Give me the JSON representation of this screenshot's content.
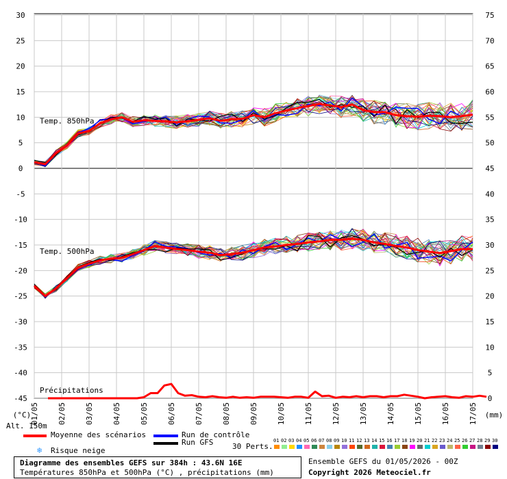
{
  "chart_data": {
    "type": "line",
    "title": "Diagramme des ensembles GEFS sur 384h : 43.6N 16E",
    "subtitle": "Températures 850hPa et 500hPa (°C) , précipitations (mm)",
    "x_tick_labels": [
      "01/05",
      "02/05",
      "03/05",
      "04/05",
      "05/05",
      "06/05",
      "07/05",
      "08/05",
      "09/05",
      "10/05",
      "11/05",
      "12/05",
      "13/05",
      "14/05",
      "15/05",
      "16/05",
      "17/05"
    ],
    "y_left_ticks": [
      30,
      25,
      20,
      15,
      10,
      5,
      0,
      -5,
      -10,
      -15,
      -20,
      -25,
      -30,
      -35,
      -40,
      -45
    ],
    "y_left_unit": "(°C)",
    "y_right_ticks": [
      75,
      70,
      65,
      60,
      55,
      50,
      45,
      40,
      35,
      30,
      25,
      20,
      15,
      10,
      5,
      0
    ],
    "y_right_unit": "(mm)",
    "ylim_left": [
      -45,
      30
    ],
    "panel_labels": {
      "t850": "Temp. 850hPa",
      "t500": "Temp. 500hPa",
      "precip": "Précipitations"
    },
    "series": [
      {
        "name": "Moyenne des scénarios",
        "color": "#ff0000",
        "t850": [
          1.2,
          0.8,
          3.0,
          4.5,
          6.8,
          7.3,
          8.8,
          9.6,
          10.0,
          9.1,
          9.4,
          9.3,
          9.2,
          9.0,
          9.2,
          9.5,
          9.8,
          9.3,
          9.6,
          9.7,
          10.4,
          10.0,
          10.8,
          11.3,
          11.8,
          12.2,
          12.6,
          12.3,
          12.0,
          12.5,
          11.4,
          11.0,
          11.0,
          10.4,
          10.2,
          10.1,
          10.3,
          10.2,
          10.0,
          10.2,
          10.5
        ],
        "t500": [
          -23.0,
          -25.0,
          -23.5,
          -21.5,
          -19.4,
          -18.7,
          -18.0,
          -17.7,
          -17.5,
          -16.8,
          -16.0,
          -15.2,
          -15.5,
          -15.8,
          -16.0,
          -16.3,
          -16.5,
          -17.0,
          -16.8,
          -16.5,
          -16.0,
          -15.5,
          -15.3,
          -15.0,
          -14.8,
          -14.5,
          -14.3,
          -14.0,
          -14.0,
          -13.8,
          -14.0,
          -14.5,
          -14.8,
          -15.2,
          -15.5,
          -16.0,
          -16.3,
          -16.6,
          -16.2,
          -15.8,
          -15.8
        ],
        "precip": [
          null,
          null,
          0,
          0,
          0,
          0,
          0,
          0,
          0,
          0,
          0,
          0,
          0,
          0,
          0,
          0,
          0.2,
          1.0,
          1.0,
          2.5,
          2.8,
          1.0,
          0.5,
          0.6,
          0.3,
          0.2,
          0.4,
          0.2,
          0.1,
          0.3,
          0.1,
          0.2,
          0.1,
          0.3,
          0.3,
          0.3,
          0.2,
          0.1,
          0.3,
          0.3,
          0.1,
          1.3,
          0.4,
          0.5,
          0.1,
          0.3,
          0.2,
          0.4,
          0.2,
          0.4,
          0.4,
          0.2,
          0.4,
          0.4,
          0.7,
          0.5,
          0.3,
          0.0,
          0.2,
          0.3,
          0.4,
          0.2,
          0.1,
          0.4,
          0.3,
          0.5,
          0.3
        ]
      },
      {
        "name": "Run de contrôle",
        "color": "#0000ff"
      },
      {
        "name": "Run GFS",
        "color": "#000000"
      }
    ]
  },
  "legend": {
    "mean_label": "Moyenne des scénarios",
    "control_label": "Run de contrôle",
    "gfs_label": "Run GFS",
    "snow_label": "Risque neige",
    "perts_label": "30 Perts.",
    "alt_label": "Alt. 150m",
    "snow_icon": "snowflake-icon",
    "pert_numbers": [
      "01",
      "02",
      "03",
      "04",
      "05",
      "06",
      "07",
      "08",
      "09",
      "10",
      "11",
      "12",
      "13",
      "14",
      "15",
      "16",
      "17",
      "18",
      "19",
      "20",
      "21",
      "22",
      "23",
      "24",
      "25",
      "26",
      "27",
      "28",
      "29",
      "30"
    ],
    "pert_colors": [
      "#ff8c00",
      "#90ee90",
      "#ffd700",
      "#1e90ff",
      "#ff69b4",
      "#2e8b57",
      "#cd853f",
      "#87ceeb",
      "#b8860b",
      "#9370db",
      "#ff4500",
      "#556b2f",
      "#d2691e",
      "#20b2aa",
      "#dc143c",
      "#4682b4",
      "#9acd32",
      "#8b4513",
      "#ff00ff",
      "#696969",
      "#00ced1",
      "#daa520",
      "#6a5acd",
      "#bdb76b",
      "#ff6347",
      "#32cd32",
      "#c71585",
      "#708090",
      "#8b0000",
      "#000080"
    ]
  },
  "footer": {
    "title": "Diagramme des ensembles GEFS sur 384h : 43.6N 16E",
    "subtitle": "Températures 850hPa et 500hPa (°C) , précipitations (mm)",
    "run_info": "Ensemble GEFS du 01/05/2026 - 00Z",
    "copyright": "Copyright 2026 Meteociel.fr"
  }
}
